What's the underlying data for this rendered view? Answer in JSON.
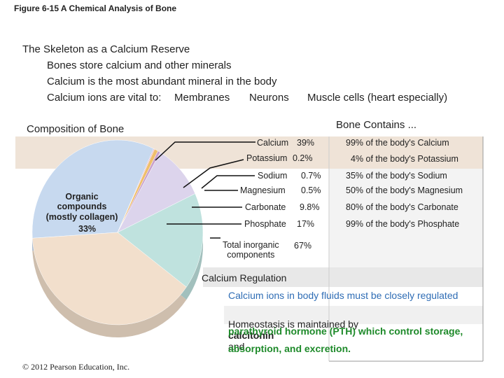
{
  "figure_caption": "Figure 6-15  A Chemical Analysis of Bone",
  "slide": {
    "title": "The Skeleton as a Calcium Reserve",
    "bullets": [
      "Bones store calcium and other minerals",
      "Calcium is the most abundant mineral in the body"
    ],
    "vital": {
      "lead": "Calcium ions are vital to:",
      "items": [
        "Membranes",
        "Neurons",
        "Muscle cells (heart especially)"
      ]
    }
  },
  "chart_data": {
    "type": "pie",
    "title": "Composition of Bone",
    "categories": [
      "Organic\ncompounds\n(mostly collagen)",
      "Potassium",
      "Sodium",
      "Magnesium",
      "Carbonate",
      "Phosphate",
      "Calcium"
    ],
    "values": [
      33,
      0.2,
      0.7,
      0.5,
      9.8,
      17,
      39
    ],
    "value_labels": [
      "33%",
      "0.2%",
      "0.7%",
      "0.5%",
      "9.8%",
      "17%",
      "39%"
    ],
    "colors": [
      "#c7d9ef",
      "#e4b4c6",
      "#efbf6a",
      "#c9a2cc",
      "#dcd4ec",
      "#bfe2de",
      "#f2dfcc"
    ]
  },
  "total_inorganic": {
    "label": "Total inorganic\ncomponents",
    "value_label": "67%"
  },
  "bone_contains": {
    "title": "Bone Contains ...",
    "rows": [
      "99% of the body's Calcium",
      "4% of the body's Potassium",
      "35% of the body's Sodium",
      "50% of the body's Magnesium",
      "80% of the body's Carbonate",
      "99% of the body's Phosphate"
    ]
  },
  "regulation": {
    "title": "Calcium Regulation",
    "line1": "Calcium ions in body fluids must be closely regulated",
    "line2": [
      "Homeostasis is maintained by",
      "calcitonin",
      "and"
    ],
    "line3": "parathyroid hormone (PTH) which control storage,",
    "line4": "absorption, and excretion."
  },
  "copyright": "© 2012 Pearson Education, Inc."
}
